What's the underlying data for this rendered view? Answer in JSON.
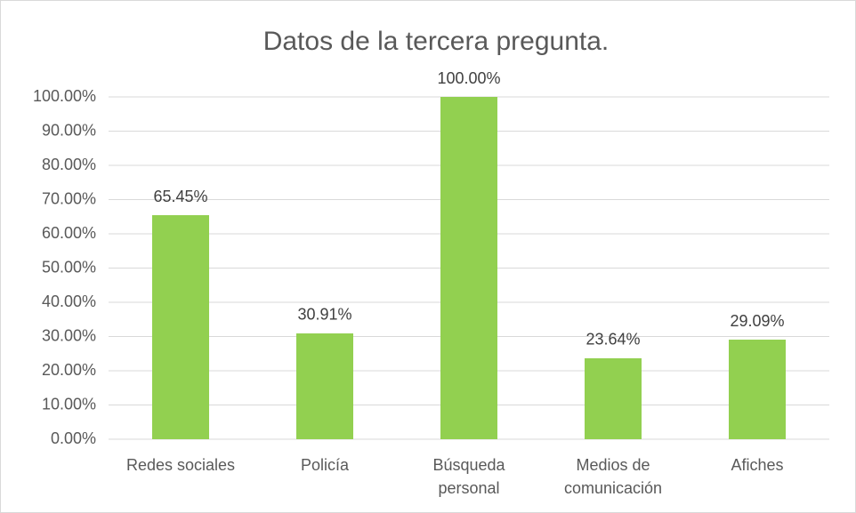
{
  "chart_data": {
    "type": "bar",
    "title": "Datos de la tercera pregunta.",
    "categories": [
      "Redes sociales",
      "Policía",
      "Búsqueda personal",
      "Medios de comunicación",
      "Afiches"
    ],
    "values": [
      65.45,
      30.91,
      100,
      23.64,
      29.09
    ],
    "value_labels": [
      "65.45%",
      "30.91%",
      "100.00%",
      "23.64%",
      "29.09%"
    ],
    "color": "#92d050",
    "ylim": [
      0,
      100
    ],
    "yticks": [
      {
        "value": 0,
        "label": "0.00%"
      },
      {
        "value": 10,
        "label": "10.00%"
      },
      {
        "value": 20,
        "label": "20.00%"
      },
      {
        "value": 30,
        "label": "30.00%"
      },
      {
        "value": 40,
        "label": "40.00%"
      },
      {
        "value": 50,
        "label": "50.00%"
      },
      {
        "value": 60,
        "label": "60.00%"
      },
      {
        "value": 70,
        "label": "70.00%"
      },
      {
        "value": 80,
        "label": "80.00%"
      },
      {
        "value": 90,
        "label": "90.00%"
      },
      {
        "value": 100,
        "label": "100.00%"
      }
    ],
    "grid": true
  }
}
